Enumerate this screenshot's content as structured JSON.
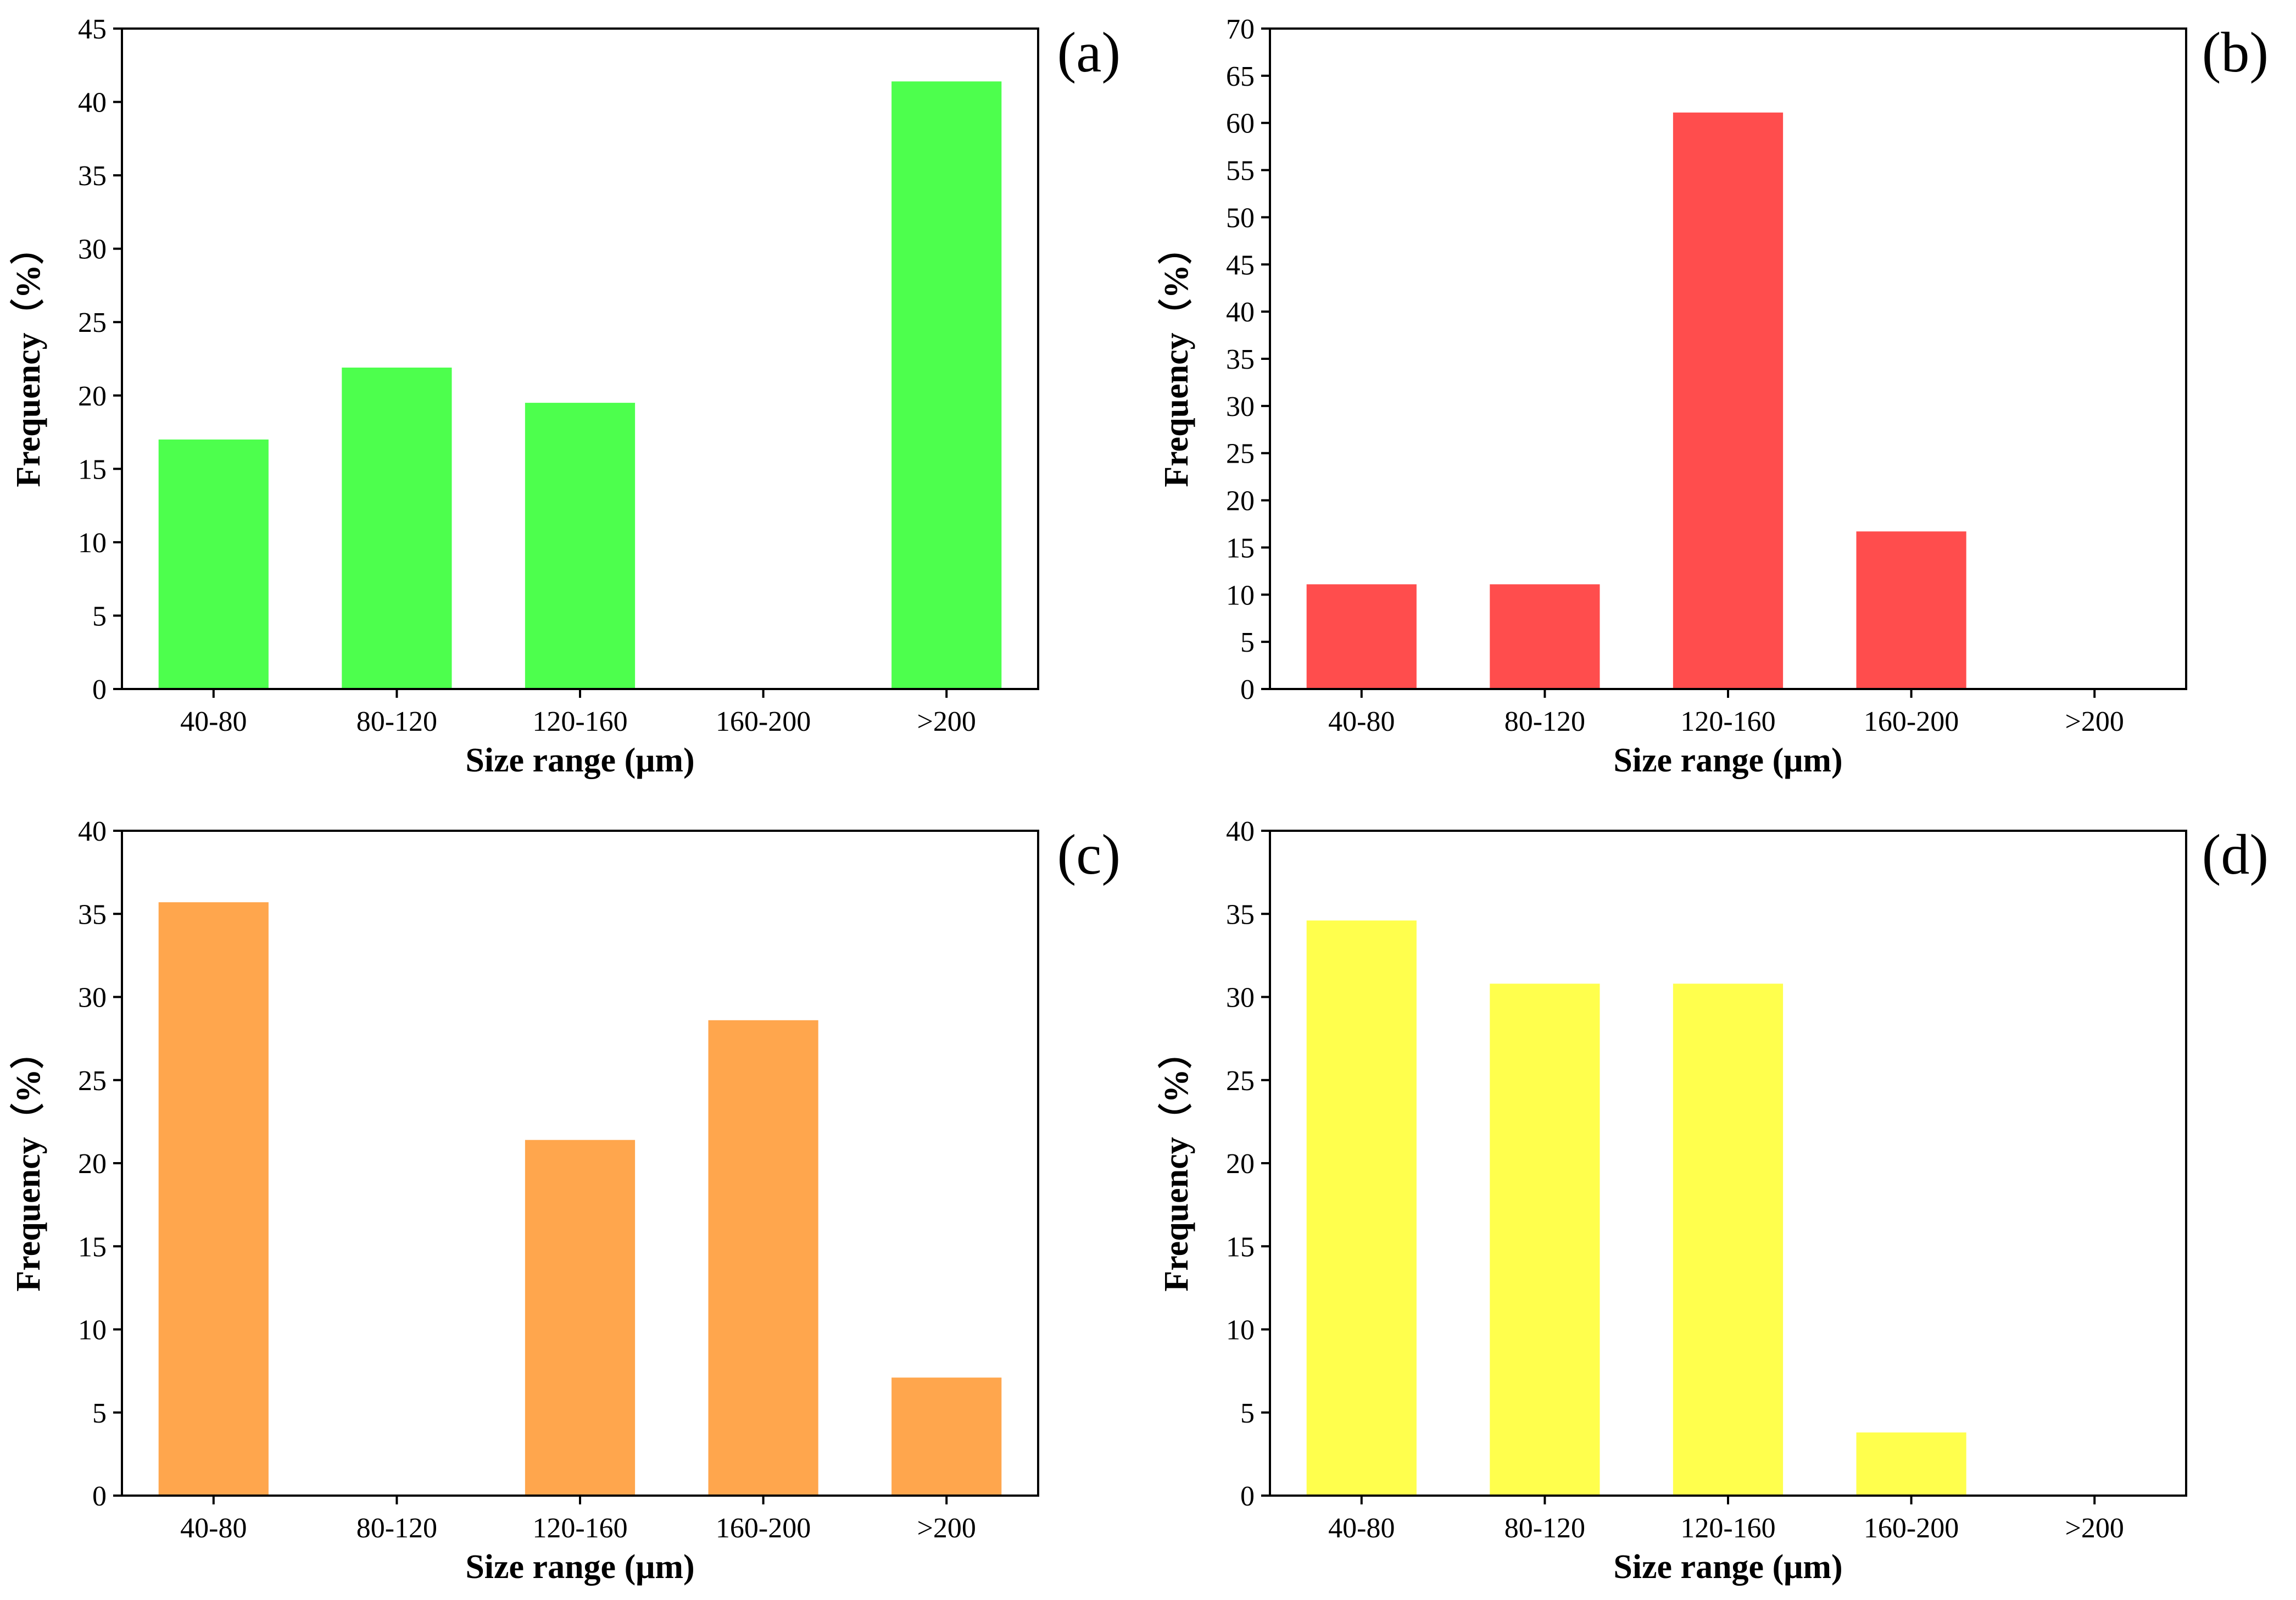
{
  "chart_data": [
    {
      "type": "bar",
      "panel_label": "(a)",
      "categories": [
        "40-80",
        "80-120",
        "120-160",
        "160-200",
        ">200"
      ],
      "values": [
        17.0,
        21.9,
        19.5,
        0,
        41.4
      ],
      "color": "#4dff4d",
      "xlabel": "Size range (μm)",
      "ylabel": "Frequency（%）",
      "ylim": [
        0,
        45
      ],
      "ytick_step": 5,
      "ytick_labels": [
        "0",
        "5",
        "10",
        "15",
        "20",
        "25",
        "30",
        "35",
        "40",
        "45"
      ],
      "grid": false
    },
    {
      "type": "bar",
      "panel_label": "(b)",
      "categories": [
        "40-80",
        "80-120",
        "120-160",
        "160-200",
        ">200"
      ],
      "values": [
        11.1,
        11.1,
        61.1,
        16.7,
        0
      ],
      "color": "#ff4d4d",
      "xlabel": "Size range (μm)",
      "ylabel": "Frequency（%）",
      "ylim": [
        0,
        70
      ],
      "ytick_step": 5,
      "ytick_labels": [
        "0",
        "5",
        "10",
        "15",
        "20",
        "25",
        "30",
        "35",
        "40",
        "45",
        "50",
        "55",
        "60",
        "65",
        "70"
      ],
      "grid": false
    },
    {
      "type": "bar",
      "panel_label": "(c)",
      "categories": [
        "40-80",
        "80-120",
        "120-160",
        "160-200",
        ">200"
      ],
      "values": [
        35.7,
        0,
        21.4,
        28.6,
        7.1
      ],
      "color": "#ffa64d",
      "xlabel": "Size range (μm)",
      "ylabel": "Frequency（%）",
      "ylim": [
        0,
        40
      ],
      "ytick_step": 5,
      "ytick_labels": [
        "0",
        "5",
        "10",
        "15",
        "20",
        "25",
        "30",
        "35",
        "40"
      ],
      "grid": false
    },
    {
      "type": "bar",
      "panel_label": "(d)",
      "categories": [
        "40-80",
        "80-120",
        "120-160",
        "160-200",
        ">200"
      ],
      "values": [
        34.6,
        30.8,
        30.8,
        3.8,
        0
      ],
      "color": "#ffff4d",
      "xlabel": "Size range (μm)",
      "ylabel": "Frequency（%）",
      "ylim": [
        0,
        40
      ],
      "ytick_step": 5,
      "ytick_labels": [
        "0",
        "5",
        "10",
        "15",
        "20",
        "25",
        "30",
        "35",
        "40"
      ],
      "grid": false
    }
  ]
}
